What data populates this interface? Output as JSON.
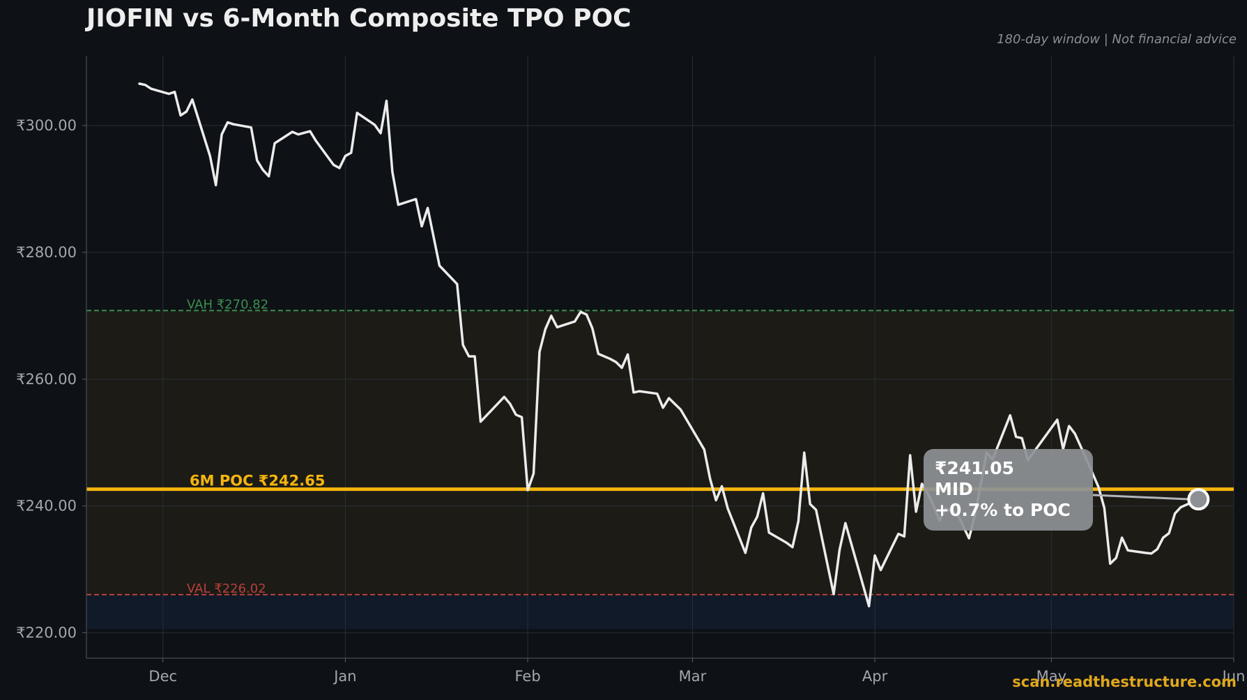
{
  "header": {
    "title": "JIOFIN vs 6-Month Composite TPO POC",
    "subtitle": "180-day window | Not financial advice"
  },
  "footer": {
    "watermark": "scan.readthestructure.com"
  },
  "colors": {
    "background": "#0e1116",
    "price_line": "#ececec",
    "poc": "#f5b50e",
    "vah": "#3c8f4f",
    "val": "#b8403b",
    "value_area_fill": "#1c1b16",
    "below_val_fill": "#101a29",
    "annotation_box": "#8d9196"
  },
  "chart_data": {
    "type": "line",
    "title": "JIOFIN vs 6-Month Composite TPO POC",
    "xlabel": "",
    "ylabel": "",
    "x_range": [
      "2024-11-18",
      "2025-06-01"
    ],
    "ylim": [
      216,
      311
    ],
    "y_ticks": [
      220,
      240,
      260,
      280,
      300
    ],
    "y_tick_labels": [
      "₹220.00",
      "₹240.00",
      "₹260.00",
      "₹280.00",
      "₹300.00"
    ],
    "x_ticks": [
      "2024-12-01",
      "2025-01-01",
      "2025-02-01",
      "2025-03-01",
      "2025-04-01",
      "2025-05-01",
      "2025-06-01"
    ],
    "x_tick_labels": [
      "Dec",
      "Jan",
      "Feb",
      "Mar",
      "Apr",
      "May",
      "Jun"
    ],
    "grid": true,
    "series": [
      {
        "values": [
          {
            "x": "2024-11-27",
            "y": 306.6
          },
          {
            "x": "2024-11-28",
            "y": 306.4
          },
          {
            "x": "2024-11-29",
            "y": 305.8
          },
          {
            "x": "2024-12-02",
            "y": 305.0
          },
          {
            "x": "2024-12-03",
            "y": 305.3
          },
          {
            "x": "2024-12-04",
            "y": 301.6
          },
          {
            "x": "2024-12-05",
            "y": 302.2
          },
          {
            "x": "2024-12-06",
            "y": 304.1
          },
          {
            "x": "2024-12-09",
            "y": 295.2
          },
          {
            "x": "2024-12-10",
            "y": 290.6
          },
          {
            "x": "2024-12-11",
            "y": 298.6
          },
          {
            "x": "2024-12-12",
            "y": 300.5
          },
          {
            "x": "2024-12-13",
            "y": 300.2
          },
          {
            "x": "2024-12-16",
            "y": 299.7
          },
          {
            "x": "2024-12-17",
            "y": 294.5
          },
          {
            "x": "2024-12-18",
            "y": 293.0
          },
          {
            "x": "2024-12-19",
            "y": 292.0
          },
          {
            "x": "2024-12-20",
            "y": 297.2
          },
          {
            "x": "2024-12-23",
            "y": 299.0
          },
          {
            "x": "2024-12-24",
            "y": 298.6
          },
          {
            "x": "2024-12-26",
            "y": 299.1
          },
          {
            "x": "2024-12-27",
            "y": 297.6
          },
          {
            "x": "2024-12-30",
            "y": 293.8
          },
          {
            "x": "2024-12-31",
            "y": 293.3
          },
          {
            "x": "2025-01-01",
            "y": 295.2
          },
          {
            "x": "2025-01-02",
            "y": 295.7
          },
          {
            "x": "2025-01-03",
            "y": 302.0
          },
          {
            "x": "2025-01-06",
            "y": 300.1
          },
          {
            "x": "2025-01-07",
            "y": 298.8
          },
          {
            "x": "2025-01-08",
            "y": 303.9
          },
          {
            "x": "2025-01-09",
            "y": 292.7
          },
          {
            "x": "2025-01-10",
            "y": 287.5
          },
          {
            "x": "2025-01-13",
            "y": 288.4
          },
          {
            "x": "2025-01-14",
            "y": 284.1
          },
          {
            "x": "2025-01-15",
            "y": 287.0
          },
          {
            "x": "2025-01-17",
            "y": 277.9
          },
          {
            "x": "2025-01-20",
            "y": 275.0
          },
          {
            "x": "2025-01-21",
            "y": 265.4
          },
          {
            "x": "2025-01-22",
            "y": 263.6
          },
          {
            "x": "2025-01-23",
            "y": 263.6
          },
          {
            "x": "2025-01-24",
            "y": 253.3
          },
          {
            "x": "2025-01-28",
            "y": 257.2
          },
          {
            "x": "2025-01-29",
            "y": 256.1
          },
          {
            "x": "2025-01-30",
            "y": 254.4
          },
          {
            "x": "2025-01-31",
            "y": 254.0
          },
          {
            "x": "2025-02-01",
            "y": 242.5
          },
          {
            "x": "2025-02-02",
            "y": 245.1
          },
          {
            "x": "2025-02-03",
            "y": 264.3
          },
          {
            "x": "2025-02-04",
            "y": 267.9
          },
          {
            "x": "2025-02-05",
            "y": 270.0
          },
          {
            "x": "2025-02-06",
            "y": 268.2
          },
          {
            "x": "2025-02-08",
            "y": 268.8
          },
          {
            "x": "2025-02-09",
            "y": 269.1
          },
          {
            "x": "2025-02-10",
            "y": 270.6
          },
          {
            "x": "2025-02-11",
            "y": 270.2
          },
          {
            "x": "2025-02-12",
            "y": 268.0
          },
          {
            "x": "2025-02-13",
            "y": 264.0
          },
          {
            "x": "2025-02-15",
            "y": 263.2
          },
          {
            "x": "2025-02-16",
            "y": 262.7
          },
          {
            "x": "2025-02-17",
            "y": 261.8
          },
          {
            "x": "2025-02-18",
            "y": 263.9
          },
          {
            "x": "2025-02-19",
            "y": 257.9
          },
          {
            "x": "2025-02-20",
            "y": 258.1
          },
          {
            "x": "2025-02-23",
            "y": 257.7
          },
          {
            "x": "2025-02-24",
            "y": 255.5
          },
          {
            "x": "2025-02-25",
            "y": 257.0
          },
          {
            "x": "2025-02-27",
            "y": 255.2
          },
          {
            "x": "2025-03-03",
            "y": 248.9
          },
          {
            "x": "2025-03-04",
            "y": 244.3
          },
          {
            "x": "2025-03-05",
            "y": 240.9
          },
          {
            "x": "2025-03-06",
            "y": 243.1
          },
          {
            "x": "2025-03-07",
            "y": 239.6
          },
          {
            "x": "2025-03-10",
            "y": 232.6
          },
          {
            "x": "2025-03-11",
            "y": 236.6
          },
          {
            "x": "2025-03-12",
            "y": 238.3
          },
          {
            "x": "2025-03-13",
            "y": 242.0
          },
          {
            "x": "2025-03-14",
            "y": 235.8
          },
          {
            "x": "2025-03-17",
            "y": 234.2
          },
          {
            "x": "2025-03-18",
            "y": 233.5
          },
          {
            "x": "2025-03-19",
            "y": 237.6
          },
          {
            "x": "2025-03-20",
            "y": 248.4
          },
          {
            "x": "2025-03-21",
            "y": 240.3
          },
          {
            "x": "2025-03-22",
            "y": 239.4
          },
          {
            "x": "2025-03-25",
            "y": 226.1
          },
          {
            "x": "2025-03-26",
            "y": 233.1
          },
          {
            "x": "2025-03-27",
            "y": 237.3
          },
          {
            "x": "2025-03-31",
            "y": 224.2
          },
          {
            "x": "2025-04-01",
            "y": 232.2
          },
          {
            "x": "2025-04-02",
            "y": 229.9
          },
          {
            "x": "2025-04-05",
            "y": 235.6
          },
          {
            "x": "2025-04-06",
            "y": 235.2
          },
          {
            "x": "2025-04-07",
            "y": 248.0
          },
          {
            "x": "2025-04-08",
            "y": 239.1
          },
          {
            "x": "2025-04-09",
            "y": 243.5
          },
          {
            "x": "2025-04-10",
            "y": 242.0
          },
          {
            "x": "2025-04-11",
            "y": 240.0
          },
          {
            "x": "2025-04-12",
            "y": 237.7
          },
          {
            "x": "2025-04-13",
            "y": 239.6
          },
          {
            "x": "2025-04-15",
            "y": 238.8
          },
          {
            "x": "2025-04-17",
            "y": 234.9
          },
          {
            "x": "2025-04-18",
            "y": 238.5
          },
          {
            "x": "2025-04-20",
            "y": 248.4
          },
          {
            "x": "2025-04-21",
            "y": 247.3
          },
          {
            "x": "2025-04-24",
            "y": 254.3
          },
          {
            "x": "2025-04-25",
            "y": 250.9
          },
          {
            "x": "2025-04-26",
            "y": 250.7
          },
          {
            "x": "2025-04-27",
            "y": 247.2
          },
          {
            "x": "2025-05-02",
            "y": 253.6
          },
          {
            "x": "2025-05-03",
            "y": 249.0
          },
          {
            "x": "2025-05-04",
            "y": 252.6
          },
          {
            "x": "2025-05-05",
            "y": 251.4
          },
          {
            "x": "2025-05-07",
            "y": 247.3
          },
          {
            "x": "2025-05-09",
            "y": 243.0
          },
          {
            "x": "2025-05-10",
            "y": 239.7
          },
          {
            "x": "2025-05-11",
            "y": 230.9
          },
          {
            "x": "2025-05-12",
            "y": 231.8
          },
          {
            "x": "2025-05-13",
            "y": 235.0
          },
          {
            "x": "2025-05-14",
            "y": 233.0
          },
          {
            "x": "2025-05-17",
            "y": 232.6
          },
          {
            "x": "2025-05-18",
            "y": 232.5
          },
          {
            "x": "2025-05-19",
            "y": 233.2
          },
          {
            "x": "2025-05-20",
            "y": 235.0
          },
          {
            "x": "2025-05-21",
            "y": 235.7
          },
          {
            "x": "2025-05-22",
            "y": 238.8
          },
          {
            "x": "2025-05-23",
            "y": 239.8
          },
          {
            "x": "2025-05-26",
            "y": 241.05
          }
        ]
      }
    ],
    "reference_lines": {
      "poc": {
        "value": 242.65,
        "label": "6M POC ₹242.65"
      },
      "vah": {
        "value": 270.82,
        "label": "VAH ₹270.82"
      },
      "val": {
        "value": 226.02,
        "label": "VAL ₹226.02"
      }
    },
    "shaded_regions": [
      {
        "from": 226.02,
        "to": 270.82,
        "name": "value-area"
      },
      {
        "from": 220.6,
        "to": 226.02,
        "name": "below-val"
      }
    ],
    "last_point": {
      "x": "2025-05-26",
      "y": 241.05
    },
    "annotation": {
      "price": "₹241.05",
      "state": "MID",
      "distance": "+0.7% to POC"
    }
  }
}
